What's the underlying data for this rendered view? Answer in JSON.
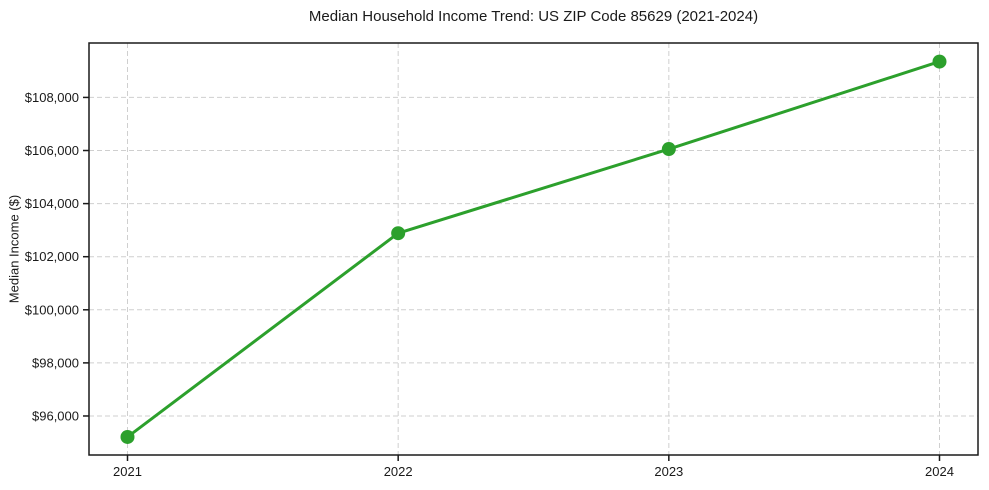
{
  "chart_data": {
    "type": "line",
    "title": "Median Household Income Trend: US ZIP Code 85629 (2021-2024)",
    "xlabel": "",
    "ylabel": "Median Income ($)",
    "categories": [
      "2021",
      "2022",
      "2023",
      "2024"
    ],
    "series": [
      {
        "name": "Median Household Income",
        "values": [
          95210,
          102885,
          106055,
          109350
        ],
        "color": "#2ca02c",
        "marker": "circle"
      }
    ],
    "ylim": [
      94530,
      110050
    ],
    "ytick_values": [
      96000,
      98000,
      100000,
      102000,
      104000,
      106000,
      108000
    ],
    "ytick_labels": [
      "$96,000",
      "$98,000",
      "$100,000",
      "$102,000",
      "$104,000",
      "$106,000",
      "$108,000"
    ],
    "grid": "both-dashed",
    "legend_position": "none",
    "colors": {
      "line": "#2ca02c",
      "gridline": "#cfcfcf",
      "spine": "#1a1a1a",
      "background": "#ffffff",
      "text": "#1a1a1a"
    }
  }
}
